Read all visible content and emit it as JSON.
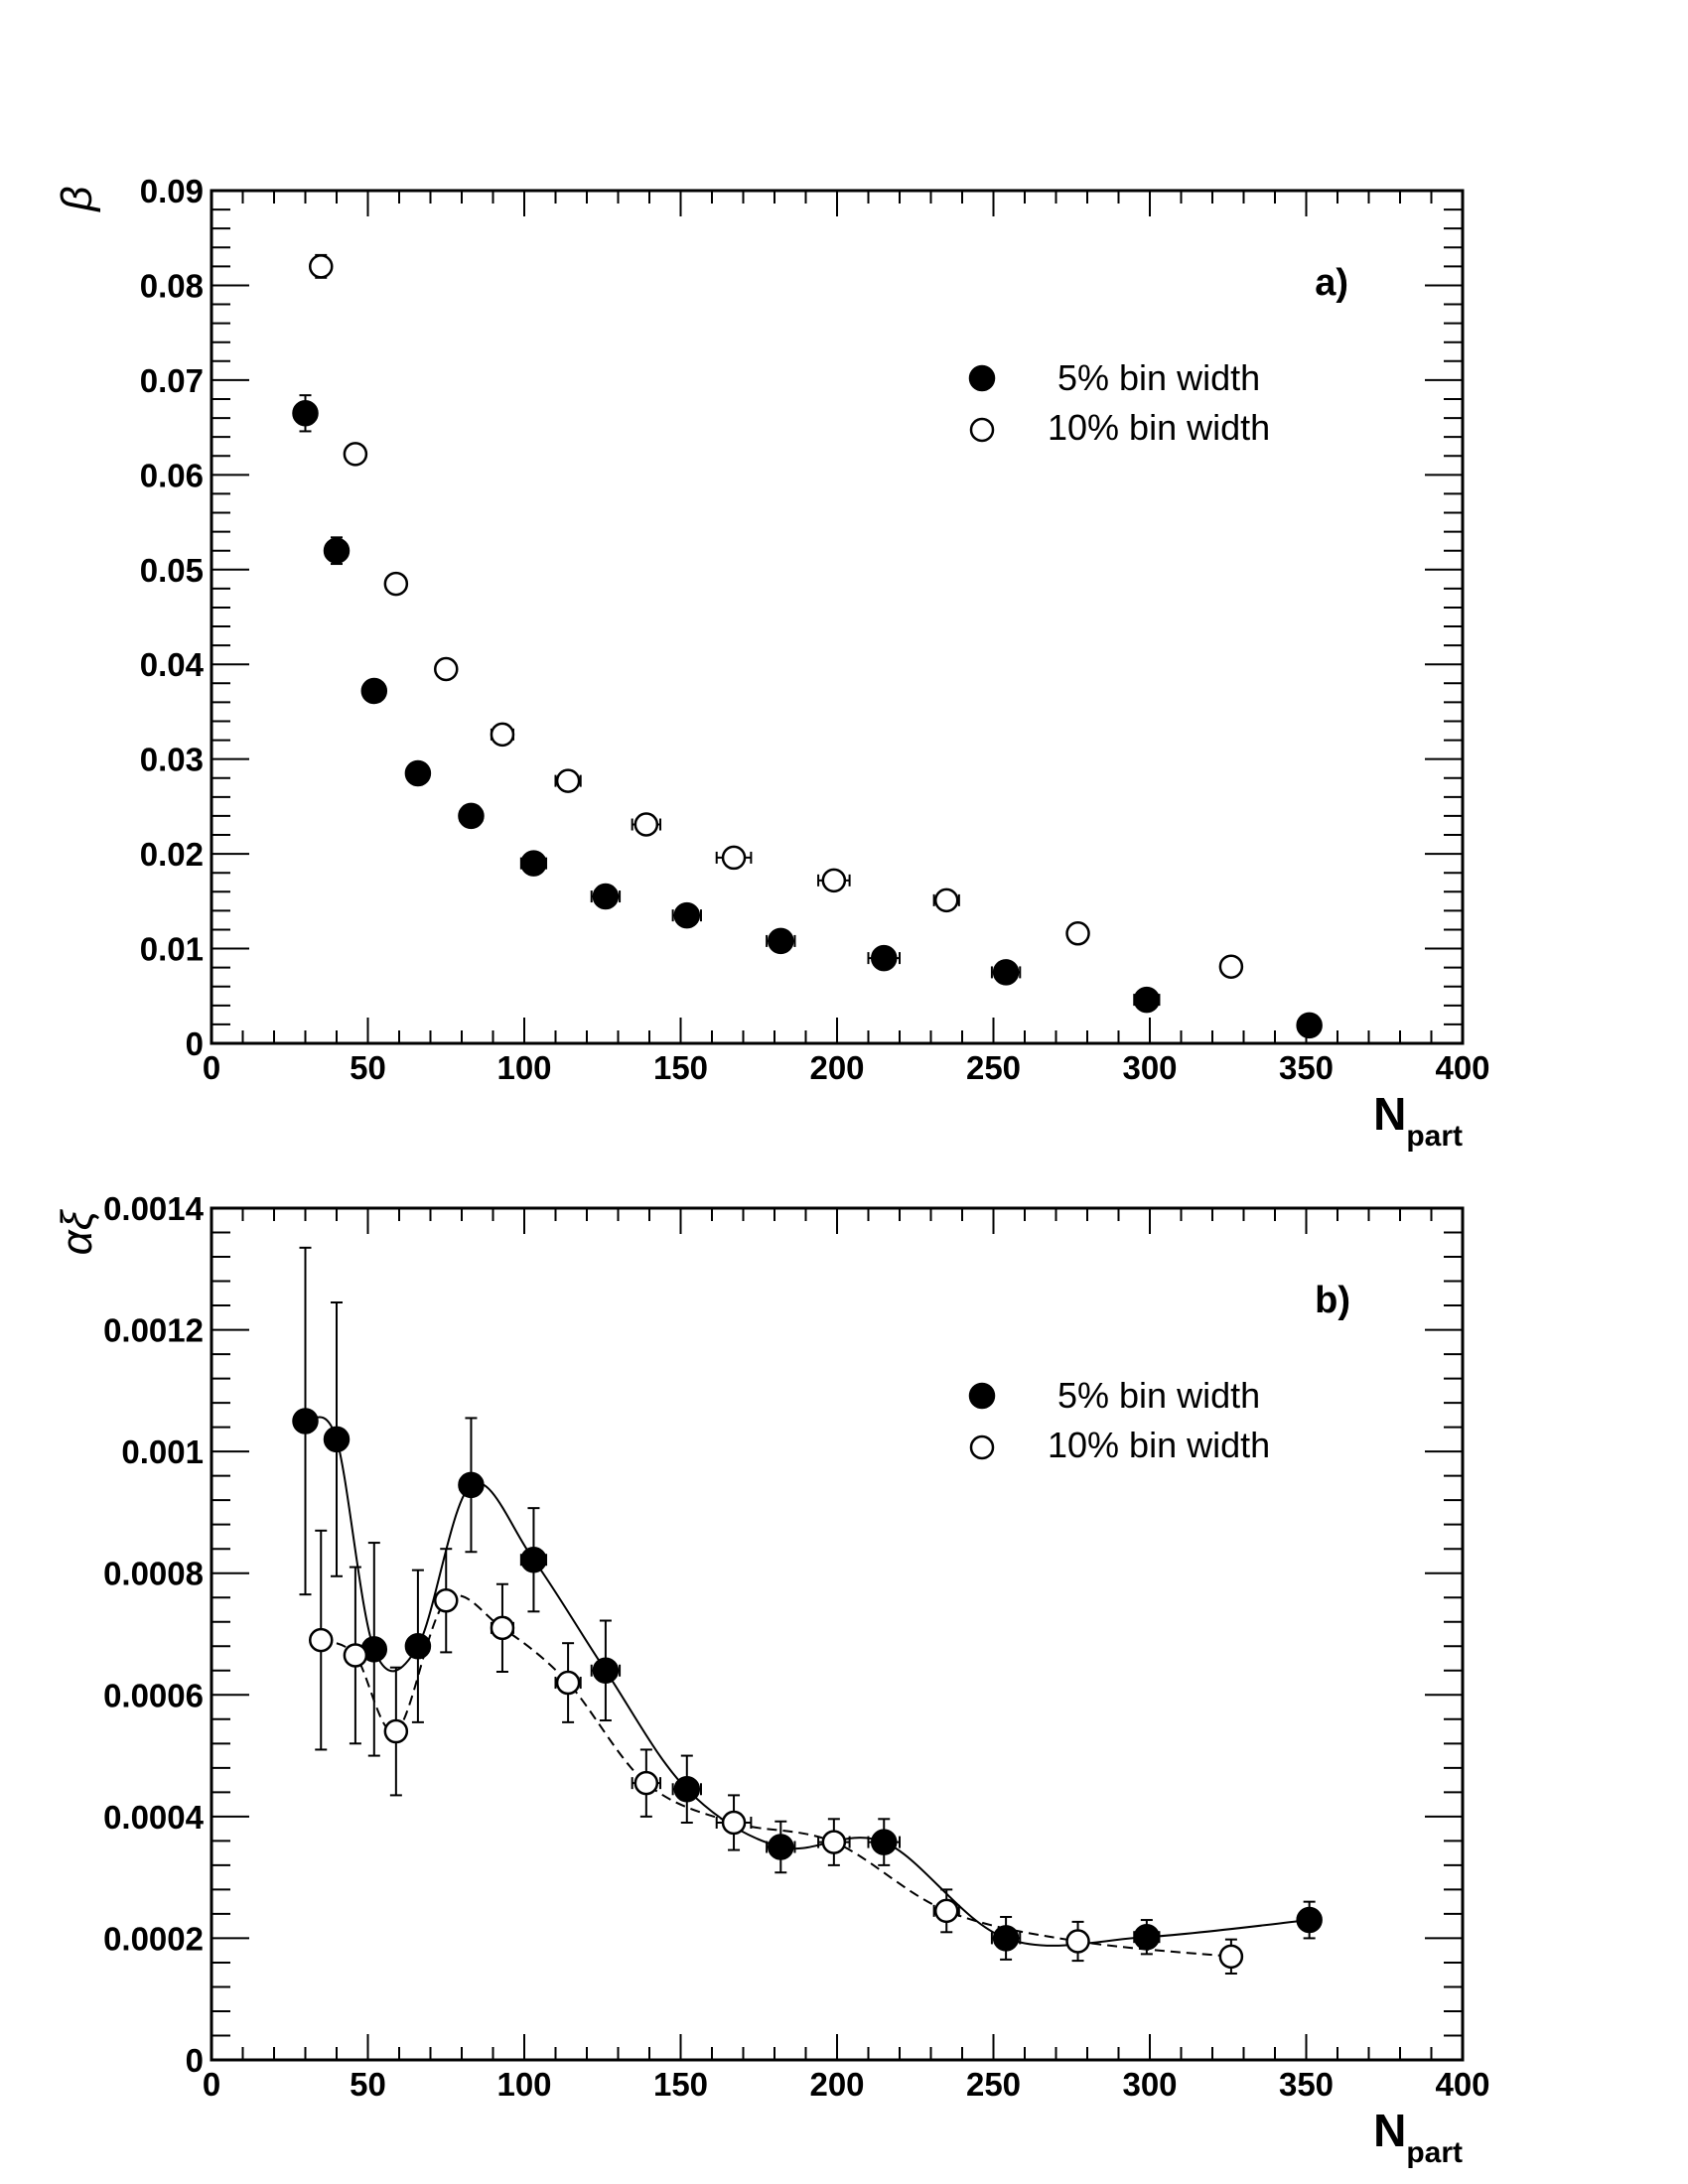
{
  "chart_data": [
    {
      "type": "scatter",
      "panel_label": "a)",
      "ylabel": "β",
      "xlabel": "N",
      "xlabel_sub": "part",
      "xlim": [
        0,
        400
      ],
      "ylim": [
        0,
        0.09
      ],
      "x_ticks": [
        0,
        50,
        100,
        150,
        200,
        250,
        300,
        350,
        400
      ],
      "x_tick_labels": [
        "0",
        "50",
        "100",
        "150",
        "200",
        "250",
        "300",
        "350",
        "400"
      ],
      "y_ticks": [
        0,
        0.01,
        0.02,
        0.03,
        0.04,
        0.05,
        0.06,
        0.07,
        0.08,
        0.09
      ],
      "y_tick_labels": [
        "0",
        "0.01",
        "0.02",
        "0.03",
        "0.04",
        "0.05",
        "0.06",
        "0.07",
        "0.08",
        "0.09"
      ],
      "legend_position": "top-right",
      "grid": false,
      "series": [
        {
          "name": "5% bin width",
          "marker": "filled-circle",
          "curve": "none",
          "x": [
            30,
            40,
            52,
            66,
            83,
            103,
            126,
            152,
            182,
            215,
            254,
            299,
            351
          ],
          "y": [
            0.0665,
            0.052,
            0.0372,
            0.0285,
            0.024,
            0.019,
            0.0155,
            0.0135,
            0.0108,
            0.009,
            0.0075,
            0.0046,
            0.0019
          ],
          "yerr": [
            0.0019,
            0.0014,
            0.0009,
            0.0008,
            0.0007,
            0.0006,
            0.0005,
            0.0005,
            0.0005,
            0.0005,
            0.0004,
            0.0004,
            0.0003
          ],
          "xerr": [
            1.5,
            1.8,
            2,
            3,
            3.5,
            4,
            4.5,
            4.5,
            4.5,
            5,
            4.5,
            4,
            3
          ]
        },
        {
          "name": "10% bin width",
          "marker": "open-circle",
          "curve": "none",
          "x": [
            35,
            46,
            59,
            75,
            93,
            114,
            139,
            167,
            199,
            235,
            277,
            326
          ],
          "y": [
            0.082,
            0.0622,
            0.0485,
            0.0395,
            0.0326,
            0.0277,
            0.0231,
            0.0196,
            0.0172,
            0.0151,
            0.0116,
            0.0081
          ],
          "yerr": [
            0.0012,
            0.0009,
            0.0007,
            0.0006,
            0.0006,
            0.0005,
            0.0005,
            0.0005,
            0.0004,
            0.0004,
            0.0004,
            0.0004
          ],
          "xerr": [
            2,
            2,
            2,
            2.5,
            3.5,
            4,
            4.5,
            5.5,
            5,
            4,
            3,
            2
          ]
        }
      ]
    },
    {
      "type": "scatter",
      "panel_label": "b)",
      "ylabel": "αξ",
      "xlabel": "N",
      "xlabel_sub": "part",
      "xlim": [
        0,
        400
      ],
      "ylim": [
        0,
        0.0014
      ],
      "x_ticks": [
        0,
        50,
        100,
        150,
        200,
        250,
        300,
        350,
        400
      ],
      "x_tick_labels": [
        "0",
        "50",
        "100",
        "150",
        "200",
        "250",
        "300",
        "350",
        "400"
      ],
      "y_ticks": [
        0,
        0.0002,
        0.0004,
        0.0006,
        0.0008,
        0.001,
        0.0012,
        0.0014
      ],
      "y_tick_labels": [
        "0",
        "0.0002",
        "0.0004",
        "0.0006",
        "0.0008",
        "0.001",
        "0.0012",
        "0.0014"
      ],
      "legend_position": "top-right",
      "grid": false,
      "series": [
        {
          "name": "5% bin width",
          "marker": "filled-circle",
          "curve": "solid",
          "x": [
            30,
            40,
            52,
            66,
            83,
            103,
            126,
            152,
            182,
            215,
            254,
            299,
            351
          ],
          "y": [
            0.00105,
            0.00102,
            0.000675,
            0.00068,
            0.000945,
            0.000822,
            0.00064,
            0.000445,
            0.00035,
            0.000358,
            0.0002,
            0.000202,
            0.00023
          ],
          "yerr": [
            0.000285,
            0.000225,
            0.000175,
            0.000125,
            0.00011,
            8.5e-05,
            8.2e-05,
            5.5e-05,
            4.2e-05,
            3.8e-05,
            3.5e-05,
            2.8e-05,
            3e-05
          ],
          "xerr": [
            1.5,
            1.8,
            2,
            3,
            3.5,
            4,
            4.5,
            4.5,
            4.5,
            5,
            4.5,
            4,
            3
          ]
        },
        {
          "name": "10% bin width",
          "marker": "open-circle",
          "curve": "dashed",
          "x": [
            35,
            46,
            59,
            75,
            93,
            114,
            139,
            167,
            199,
            235,
            277,
            326
          ],
          "y": [
            0.00069,
            0.000665,
            0.00054,
            0.000755,
            0.00071,
            0.00062,
            0.000455,
            0.00039,
            0.000358,
            0.000245,
            0.000195,
            0.00017
          ],
          "yerr": [
            0.00018,
            0.000145,
            0.000105,
            8.5e-05,
            7.2e-05,
            6.5e-05,
            5.5e-05,
            4.5e-05,
            3.8e-05,
            3.5e-05,
            3.2e-05,
            2.8e-05
          ],
          "xerr": [
            2,
            2,
            2,
            2.5,
            3.5,
            4,
            4.5,
            5.5,
            5,
            4,
            3,
            2
          ]
        }
      ]
    }
  ]
}
